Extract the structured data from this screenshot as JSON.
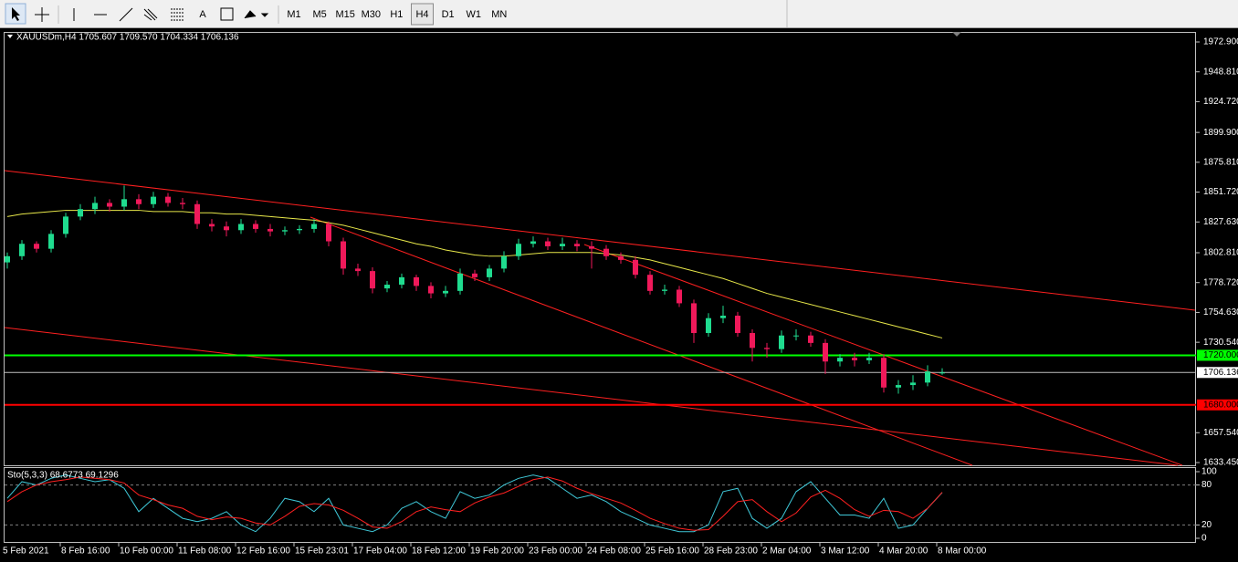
{
  "toolbar": {
    "text_tool": "A",
    "timeframes": [
      "M1",
      "M5",
      "M15",
      "M30",
      "H1",
      "H4",
      "D1",
      "W1",
      "MN"
    ],
    "active": "H4"
  },
  "chart_data": [
    {
      "type": "candlestick",
      "header": "XAUUSDm,H4  1705.607 1709.570 1704.334 1706.136",
      "up_color": "#1fdc8f",
      "down_color": "#f0195a",
      "candles": [
        [
          1795,
          1803,
          1790,
          1800
        ],
        [
          1800,
          1813,
          1797,
          1810
        ],
        [
          1810,
          1812,
          1803,
          1806
        ],
        [
          1806,
          1821,
          1803,
          1818
        ],
        [
          1818,
          1835,
          1815,
          1832
        ],
        [
          1832,
          1842,
          1829,
          1838
        ],
        [
          1838,
          1848,
          1834,
          1843
        ],
        [
          1843,
          1846,
          1836,
          1840
        ],
        [
          1840,
          1857,
          1837,
          1846
        ],
        [
          1846,
          1850,
          1838,
          1842
        ],
        [
          1842,
          1852,
          1839,
          1848
        ],
        [
          1848,
          1851,
          1840,
          1843
        ],
        [
          1843,
          1847,
          1838,
          1842
        ],
        [
          1842,
          1845,
          1822,
          1826
        ],
        [
          1826,
          1830,
          1820,
          1824
        ],
        [
          1824,
          1828,
          1816,
          1821
        ],
        [
          1821,
          1830,
          1818,
          1826
        ],
        [
          1826,
          1829,
          1819,
          1822
        ],
        [
          1822,
          1826,
          1816,
          1820
        ],
        [
          1820,
          1824,
          1817,
          1821
        ],
        [
          1821,
          1825,
          1818,
          1822
        ],
        [
          1822,
          1830,
          1819,
          1826
        ],
        [
          1826,
          1828,
          1808,
          1812
        ],
        [
          1812,
          1815,
          1785,
          1790
        ],
        [
          1790,
          1794,
          1784,
          1788
        ],
        [
          1788,
          1791,
          1770,
          1774
        ],
        [
          1774,
          1780,
          1771,
          1777
        ],
        [
          1777,
          1786,
          1774,
          1783
        ],
        [
          1783,
          1785,
          1772,
          1776
        ],
        [
          1776,
          1779,
          1766,
          1770
        ],
        [
          1770,
          1776,
          1767,
          1772
        ],
        [
          1772,
          1790,
          1769,
          1786
        ],
        [
          1786,
          1789,
          1780,
          1783
        ],
        [
          1783,
          1793,
          1780,
          1790
        ],
        [
          1790,
          1804,
          1787,
          1800
        ],
        [
          1800,
          1814,
          1797,
          1810
        ],
        [
          1810,
          1816,
          1807,
          1812
        ],
        [
          1812,
          1815,
          1805,
          1808
        ],
        [
          1808,
          1815,
          1805,
          1810
        ],
        [
          1810,
          1813,
          1804,
          1808
        ],
        [
          1808,
          1812,
          1790,
          1806
        ],
        [
          1806,
          1809,
          1797,
          1800
        ],
        [
          1800,
          1803,
          1794,
          1797
        ],
        [
          1797,
          1800,
          1782,
          1785
        ],
        [
          1785,
          1788,
          1769,
          1772
        ],
        [
          1772,
          1777,
          1769,
          1773
        ],
        [
          1773,
          1776,
          1759,
          1762
        ],
        [
          1762,
          1765,
          1730,
          1738
        ],
        [
          1738,
          1754,
          1735,
          1750
        ],
        [
          1750,
          1760,
          1746,
          1752
        ],
        [
          1752,
          1755,
          1735,
          1738
        ],
        [
          1738,
          1741,
          1715,
          1726
        ],
        [
          1726,
          1730,
          1718,
          1725
        ],
        [
          1725,
          1740,
          1722,
          1736
        ],
        [
          1736,
          1741,
          1732,
          1736
        ],
        [
          1736,
          1739,
          1727,
          1730
        ],
        [
          1730,
          1733,
          1705,
          1715
        ],
        [
          1715,
          1721,
          1711,
          1718
        ],
        [
          1718,
          1722,
          1711,
          1716
        ],
        [
          1716,
          1722,
          1713,
          1718
        ],
        [
          1718,
          1721,
          1690,
          1694
        ],
        [
          1694,
          1700,
          1689,
          1696
        ],
        [
          1696,
          1704,
          1692,
          1698
        ],
        [
          1698,
          1712,
          1695,
          1707
        ],
        [
          1705.607,
          1709.57,
          1704.334,
          1706.136
        ]
      ],
      "ma": {
        "color": "#e8e84a",
        "values": [
          1832,
          1834,
          1835,
          1836,
          1837,
          1837,
          1837,
          1837,
          1837,
          1837,
          1836,
          1836,
          1836,
          1835,
          1835,
          1834,
          1834,
          1833,
          1832,
          1831,
          1830,
          1829,
          1827,
          1825,
          1822,
          1819,
          1816,
          1813,
          1810,
          1808,
          1805,
          1803,
          1801,
          1800,
          1800,
          1801,
          1802,
          1803,
          1803,
          1803,
          1803,
          1802,
          1801,
          1799,
          1797,
          1794,
          1791,
          1788,
          1785,
          1782,
          1778,
          1774,
          1770,
          1767,
          1764,
          1761,
          1758,
          1755,
          1752,
          1749,
          1746,
          1743,
          1740,
          1737,
          1734
        ]
      },
      "ylim": [
        1633.45,
        1972.9
      ],
      "yticks": [
        {
          "value": 1972.9,
          "label": "1972.900"
        },
        {
          "value": 1948.81,
          "label": "1948.810"
        },
        {
          "value": 1924.72,
          "label": "1924.720"
        },
        {
          "value": 1899.9,
          "label": "1899.900"
        },
        {
          "value": 1875.81,
          "label": "1875.810"
        },
        {
          "value": 1851.72,
          "label": "1851.720"
        },
        {
          "value": 1827.63,
          "label": "1827.630"
        },
        {
          "value": 1802.81,
          "label": "1802.810"
        },
        {
          "value": 1778.72,
          "label": "1778.720"
        },
        {
          "value": 1754.63,
          "label": "1754.630"
        },
        {
          "value": 1730.54,
          "label": "1730.540"
        },
        {
          "value": 1657.54,
          "label": "1657.540"
        },
        {
          "value": 1633.45,
          "label": "1633.450"
        }
      ],
      "hlines": [
        {
          "value": 1720,
          "label": "1720.000",
          "color": "#00ff00"
        },
        {
          "value": 1706.136,
          "label": "1706.136",
          "color": "#c0c0c0"
        },
        {
          "value": 1680,
          "label": "1680.000",
          "color": "#ff0000"
        }
      ],
      "x_labels": [
        "5 Feb 2021",
        "8 Feb 16:00",
        "10 Feb 00:00",
        "11 Feb 08:00",
        "12 Feb 16:00",
        "15 Feb 23:01",
        "17 Feb 04:00",
        "18 Feb 12:00",
        "19 Feb 20:00",
        "23 Feb 00:00",
        "24 Feb 08:00",
        "25 Feb 16:00",
        "28 Feb 23:00",
        "2 Mar 04:00",
        "3 Mar 12:00",
        "4 Mar 20:00",
        "8 Mar 00:00"
      ]
    },
    {
      "type": "line",
      "header": "Sto(5,3,3) 68.6773 69.1296",
      "series": [
        {
          "color": "#3fc8d8",
          "values": [
            60,
            85,
            80,
            90,
            95,
            90,
            85,
            88,
            75,
            40,
            60,
            45,
            30,
            25,
            30,
            40,
            20,
            10,
            30,
            60,
            55,
            40,
            60,
            20,
            15,
            10,
            20,
            45,
            55,
            40,
            30,
            70,
            60,
            65,
            80,
            90,
            95,
            90,
            75,
            60,
            65,
            55,
            40,
            30,
            20,
            15,
            10,
            10,
            20,
            70,
            75,
            30,
            15,
            30,
            70,
            85,
            60,
            35,
            35,
            30,
            60,
            15,
            20,
            45,
            68.6773
          ]
        },
        {
          "color": "#ff2020",
          "values": [
            55,
            70,
            80,
            85,
            88,
            92,
            90,
            88,
            83,
            65,
            58,
            50,
            45,
            33,
            28,
            32,
            30,
            23,
            20,
            33,
            48,
            52,
            50,
            42,
            30,
            17,
            15,
            25,
            40,
            47,
            43,
            40,
            53,
            62,
            68,
            78,
            88,
            92,
            86,
            75,
            67,
            60,
            53,
            42,
            30,
            22,
            15,
            12,
            13,
            33,
            55,
            58,
            40,
            25,
            38,
            62,
            72,
            60,
            43,
            33,
            42,
            40,
            30,
            45,
            69.1296
          ]
        }
      ],
      "ylim": [
        0,
        100
      ],
      "yticks": [
        100,
        80,
        20,
        0
      ],
      "levels": [
        80,
        20
      ]
    }
  ]
}
